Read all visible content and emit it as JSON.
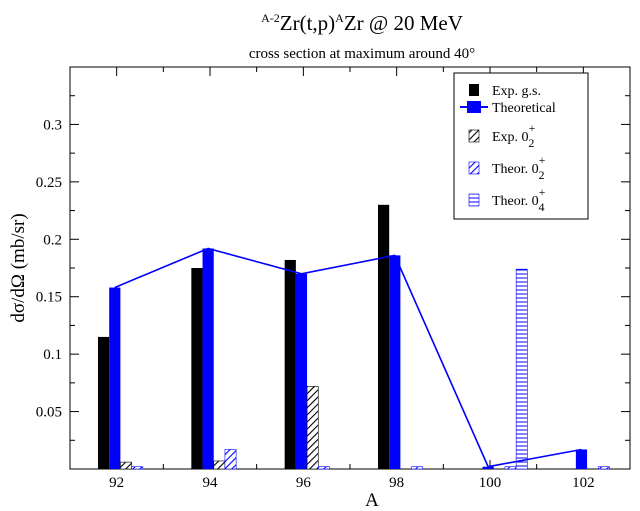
{
  "chart_data": {
    "type": "bar",
    "title": {
      "pre_superscript": "A-2",
      "part1": "Zr(t,p)",
      "superscript": "A",
      "part2": "Zr  @  20 MeV"
    },
    "subtitle": "cross section at maximum around 40°",
    "xlabel": "A",
    "ylabel": "dσ/dΩ  (mb/sr)",
    "xlim": [
      91,
      103
    ],
    "ylim": [
      0,
      0.35
    ],
    "x_ticks": [
      92,
      94,
      96,
      98,
      100,
      102
    ],
    "x_tick_labels": [
      "92",
      "94",
      "96",
      "98",
      "100",
      "102"
    ],
    "y_ticks": [
      0.05,
      0.1,
      0.15,
      0.2,
      0.25,
      0.3
    ],
    "y_tick_labels": [
      "0.05",
      "0.1",
      "0.15",
      "0.2",
      "0.25",
      "0.3"
    ],
    "legend_position": "top-right",
    "series": [
      {
        "key": "exp_gs",
        "legend": {
          "text": "Exp. g.s.",
          "sup": "",
          "sub": ""
        },
        "pattern": "solid",
        "color": "#000000",
        "x": [
          91.6,
          93.6,
          95.6,
          97.6
        ],
        "values": [
          0.115,
          0.175,
          0.182,
          0.23
        ]
      },
      {
        "key": "theor_gs",
        "legend": {
          "text": "Theoretical",
          "sup": "",
          "sub": ""
        },
        "pattern": "solid",
        "color": "#0000ff",
        "x": [
          91.84,
          93.84,
          95.84,
          97.84,
          99.84,
          101.84
        ],
        "values": [
          0.158,
          0.192,
          0.17,
          0.186,
          0.002,
          0.017
        ]
      },
      {
        "key": "exp_02",
        "legend": {
          "text": "Exp. 0",
          "sup": "+",
          "sub": "2"
        },
        "pattern": "diagonal",
        "color": "#000000",
        "x": [
          92.08,
          94.08,
          96.08
        ],
        "values": [
          0.006,
          0.007,
          0.072
        ]
      },
      {
        "key": "theor_02",
        "legend": {
          "text": "Theor. 0",
          "sup": "+",
          "sub": "2"
        },
        "pattern": "diagonal",
        "color": "#0000ff",
        "x": [
          92.32,
          94.32,
          96.32,
          98.32,
          100.32,
          102.32
        ],
        "values": [
          0.002,
          0.017,
          0.002,
          0.002,
          0.002,
          0.002
        ]
      },
      {
        "key": "theor_04",
        "legend": {
          "text": "Theor. 0",
          "sup": "+",
          "sub": "4"
        },
        "pattern": "horizontal",
        "color": "#0000ff",
        "x": [
          100.56
        ],
        "values": [
          0.174
        ]
      }
    ],
    "theory_line": {
      "color": "#0000ff",
      "x": [
        91.84,
        93.84,
        95.84,
        97.84,
        99.84,
        101.84
      ],
      "values": [
        0.158,
        0.192,
        0.17,
        0.186,
        0.002,
        0.017
      ]
    }
  }
}
